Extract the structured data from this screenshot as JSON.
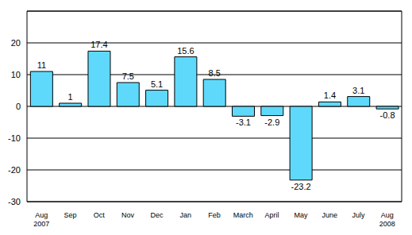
{
  "chart_data": {
    "type": "bar",
    "categories": [
      "Aug\n2007",
      "Sep",
      "Oct",
      "Nov",
      "Dec",
      "Jan",
      "Feb",
      "March",
      "April",
      "May",
      "June",
      "July",
      "Aug\n2008"
    ],
    "values": [
      11,
      1,
      17.4,
      7.5,
      5.1,
      15.6,
      8.5,
      -3.1,
      -2.9,
      -23.2,
      1.4,
      3.1,
      -0.8
    ],
    "color": "#5fd9fb",
    "ylim": [
      -30,
      30
    ],
    "yticks": [
      -30,
      -20,
      -10,
      0,
      10,
      20
    ],
    "grid": true,
    "data_labels": true
  }
}
